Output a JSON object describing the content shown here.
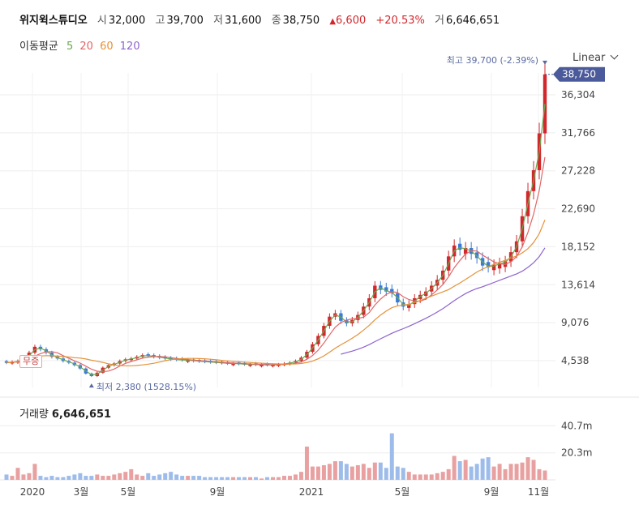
{
  "header": {
    "name": "위지윅스튜디오",
    "open_label": "시",
    "open": "32,000",
    "high_label": "고",
    "high": "39,700",
    "low_label": "저",
    "low": "31,600",
    "close_label": "종",
    "close": "38,750",
    "change": "6,600",
    "change_pct": "+20.53%",
    "volume_label": "거",
    "volume": "6,646,651"
  },
  "ma_legend": {
    "title": "이동평균",
    "ma5": "5",
    "ma20": "20",
    "ma60": "60",
    "ma120": "120"
  },
  "scale_select": {
    "label": "Linear"
  },
  "annotations": {
    "high": "최고 39,700 (-2.39%)",
    "low": "최저 2,380 (1528.15%)",
    "current_price": "38,750",
    "badge": "무증"
  },
  "volume_panel": {
    "title": "거래량",
    "value": "6,646,651"
  },
  "colors": {
    "up": "#d2282d",
    "down": "#3a7bd5",
    "ma5": "#6aa84f",
    "ma20": "#e06666",
    "ma60": "#e69138",
    "ma120": "#8e63ce",
    "price_tag": "#4a5a9a"
  },
  "chart_data": [
    {
      "type": "candlestick",
      "title": "",
      "y_ticks": [
        "36,304",
        "31,766",
        "27,228",
        "22,690",
        "18,152",
        "13,614",
        "9,076",
        "4,538"
      ],
      "x_ticks": [
        "2020",
        "3월",
        "5월",
        "9월",
        "2021",
        "5월",
        "9월",
        "11월"
      ],
      "grid": true,
      "ylim": [
        2380,
        39700
      ],
      "weekly_close": [
        4300,
        4400,
        4500,
        4800,
        5500,
        6200,
        5900,
        5500,
        5000,
        4800,
        4500,
        4300,
        4000,
        3600,
        3000,
        2700,
        3100,
        3700,
        4000,
        4200,
        4500,
        4700,
        4800,
        5000,
        5200,
        5100,
        5000,
        4900,
        4800,
        4700,
        4650,
        4600,
        4600,
        4500,
        4450,
        4400,
        4350,
        4300,
        4250,
        4200,
        4200,
        4150,
        4100,
        4100,
        4050,
        4050,
        4000,
        4050,
        4100,
        4200,
        4300,
        4500,
        4900,
        5600,
        6500,
        7500,
        8700,
        9800,
        10200,
        9300,
        9000,
        9400,
        10000,
        11000,
        12000,
        13500,
        13000,
        12800,
        12600,
        11500,
        11000,
        11300,
        12000,
        12400,
        12800,
        13500,
        14200,
        15300,
        17000,
        18300,
        17800,
        18000,
        17300,
        16800,
        15900,
        15700,
        16000,
        16200,
        16400,
        17500,
        18800,
        21800,
        24800,
        27300,
        31700,
        38750
      ],
      "weekly_up": [
        false,
        true,
        true,
        true,
        true,
        true,
        false,
        false,
        false,
        false,
        false,
        false,
        false,
        false,
        false,
        false,
        true,
        true,
        true,
        true,
        true,
        true,
        true,
        true,
        true,
        false,
        false,
        false,
        false,
        false,
        false,
        false,
        true,
        false,
        false,
        false,
        false,
        false,
        false,
        false,
        true,
        false,
        false,
        true,
        false,
        true,
        false,
        true,
        true,
        true,
        true,
        true,
        true,
        true,
        true,
        true,
        true,
        true,
        true,
        false,
        false,
        true,
        true,
        true,
        true,
        true,
        false,
        false,
        false,
        false,
        false,
        true,
        true,
        true,
        true,
        true,
        true,
        true,
        true,
        true,
        false,
        true,
        false,
        false,
        false,
        false,
        true,
        true,
        true,
        true,
        true,
        true,
        true,
        true,
        true,
        true
      ],
      "ma5_start_week": 0,
      "ma20_start_week": 0,
      "ma60_start_week": 0,
      "ma120_start_week": 59,
      "high_point": {
        "value": 39700,
        "change_pct": -2.39
      },
      "low_point": {
        "value": 2380,
        "change_pct": 1528.15
      }
    },
    {
      "type": "bar",
      "title": "",
      "y_ticks": [
        "40.7m",
        "20.3m"
      ],
      "ylim": [
        0,
        50
      ],
      "weekly_volume_m": [
        4,
        3,
        9,
        4,
        5,
        12,
        3,
        2,
        3,
        2,
        2,
        3,
        4,
        5,
        3,
        3,
        4,
        3,
        3,
        4,
        5,
        6,
        8,
        4,
        3,
        5,
        3,
        4,
        5,
        6,
        4,
        3,
        3,
        3,
        3,
        2,
        2,
        2,
        2,
        2,
        2,
        2,
        2,
        2,
        2,
        1,
        2,
        2,
        2,
        3,
        3,
        4,
        6,
        25,
        10,
        10,
        11,
        12,
        14,
        14,
        12,
        10,
        11,
        12,
        9,
        13,
        13,
        9,
        35,
        10,
        9,
        6,
        4,
        4,
        4,
        4,
        5,
        6,
        8,
        18,
        14,
        15,
        10,
        12,
        16,
        17,
        10,
        12,
        8,
        12,
        12,
        13,
        17,
        15,
        8,
        7
      ]
    }
  ]
}
